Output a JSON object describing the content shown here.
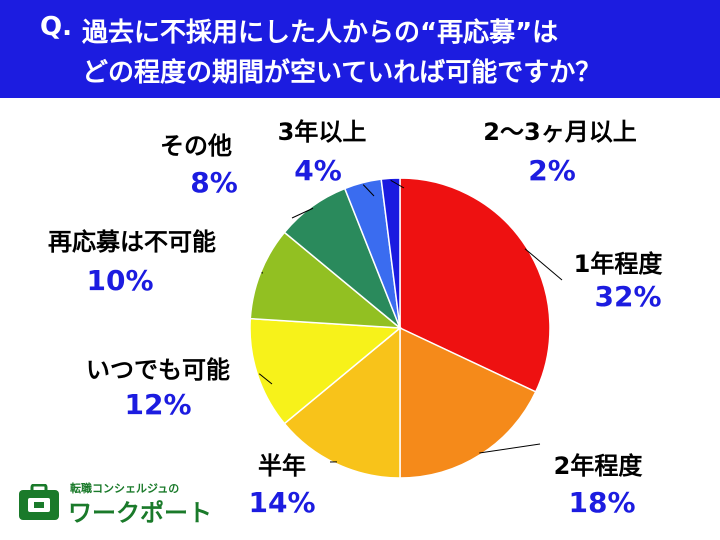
{
  "question": {
    "mark": "Q.",
    "line1": "過去に不採用にした人からの“再応募”は",
    "line2": "どの程度の期間が空いていれば可能ですか？"
  },
  "chart_data": {
    "type": "pie",
    "slices": [
      {
        "label": "1年程度",
        "value": 32,
        "value_text": "32%",
        "color": "#ee1111"
      },
      {
        "label": "2年程度",
        "value": 18,
        "value_text": "18%",
        "color": "#f58a1a"
      },
      {
        "label": "半年",
        "value": 14,
        "value_text": "14%",
        "color": "#f8c31a"
      },
      {
        "label": "いつでも可能",
        "value": 12,
        "value_text": "12%",
        "color": "#f7f21a"
      },
      {
        "label": "再応募は不可能",
        "value": 10,
        "value_text": "10%",
        "color": "#92c022"
      },
      {
        "label": "その他",
        "value": 8,
        "value_text": "8%",
        "color": "#2a8a5c"
      },
      {
        "label": "3年以上",
        "value": 4,
        "value_text": "4%",
        "color": "#3a6cf0"
      },
      {
        "label": "2～3ヶ月以上",
        "value": 2,
        "value_text": "2%",
        "color": "#1a1ae0"
      }
    ]
  },
  "logo": {
    "small_text": "転職コンシェルジュの",
    "main_text": "ワークポート",
    "color": "#1a7a2a"
  }
}
